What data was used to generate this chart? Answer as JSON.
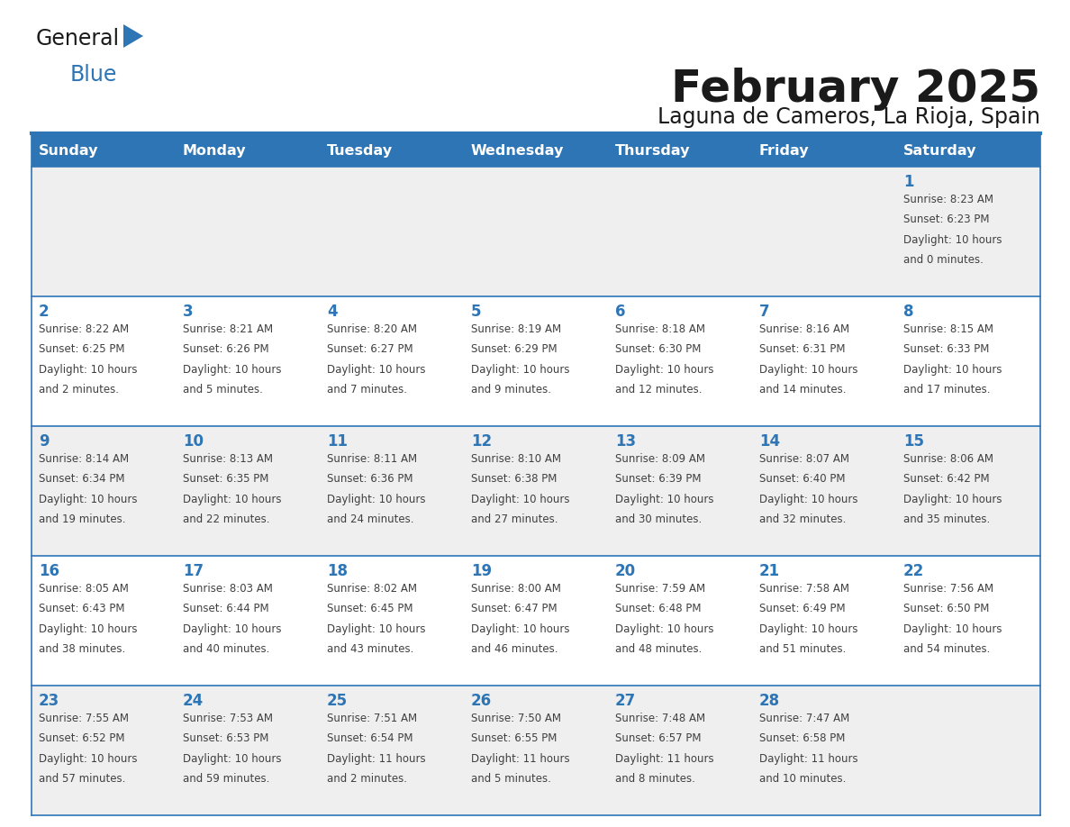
{
  "title": "February 2025",
  "subtitle": "Laguna de Cameros, La Rioja, Spain",
  "days_of_week": [
    "Sunday",
    "Monday",
    "Tuesday",
    "Wednesday",
    "Thursday",
    "Friday",
    "Saturday"
  ],
  "header_bg": "#2E75B6",
  "header_text_color": "#FFFFFF",
  "cell_bg_odd": "#EFEFEF",
  "cell_bg_even": "#FFFFFF",
  "border_color": "#2E75B6",
  "title_color": "#1a1a1a",
  "subtitle_color": "#1a1a1a",
  "day_number_color": "#2E75B6",
  "cell_text_color": "#404040",
  "calendar_data": [
    [
      null,
      null,
      null,
      null,
      null,
      null,
      {
        "day": 1,
        "sunrise": "8:23 AM",
        "sunset": "6:23 PM",
        "daylight": "10 hours and 0 minutes."
      }
    ],
    [
      {
        "day": 2,
        "sunrise": "8:22 AM",
        "sunset": "6:25 PM",
        "daylight": "10 hours and 2 minutes."
      },
      {
        "day": 3,
        "sunrise": "8:21 AM",
        "sunset": "6:26 PM",
        "daylight": "10 hours and 5 minutes."
      },
      {
        "day": 4,
        "sunrise": "8:20 AM",
        "sunset": "6:27 PM",
        "daylight": "10 hours and 7 minutes."
      },
      {
        "day": 5,
        "sunrise": "8:19 AM",
        "sunset": "6:29 PM",
        "daylight": "10 hours and 9 minutes."
      },
      {
        "day": 6,
        "sunrise": "8:18 AM",
        "sunset": "6:30 PM",
        "daylight": "10 hours and 12 minutes."
      },
      {
        "day": 7,
        "sunrise": "8:16 AM",
        "sunset": "6:31 PM",
        "daylight": "10 hours and 14 minutes."
      },
      {
        "day": 8,
        "sunrise": "8:15 AM",
        "sunset": "6:33 PM",
        "daylight": "10 hours and 17 minutes."
      }
    ],
    [
      {
        "day": 9,
        "sunrise": "8:14 AM",
        "sunset": "6:34 PM",
        "daylight": "10 hours and 19 minutes."
      },
      {
        "day": 10,
        "sunrise": "8:13 AM",
        "sunset": "6:35 PM",
        "daylight": "10 hours and 22 minutes."
      },
      {
        "day": 11,
        "sunrise": "8:11 AM",
        "sunset": "6:36 PM",
        "daylight": "10 hours and 24 minutes."
      },
      {
        "day": 12,
        "sunrise": "8:10 AM",
        "sunset": "6:38 PM",
        "daylight": "10 hours and 27 minutes."
      },
      {
        "day": 13,
        "sunrise": "8:09 AM",
        "sunset": "6:39 PM",
        "daylight": "10 hours and 30 minutes."
      },
      {
        "day": 14,
        "sunrise": "8:07 AM",
        "sunset": "6:40 PM",
        "daylight": "10 hours and 32 minutes."
      },
      {
        "day": 15,
        "sunrise": "8:06 AM",
        "sunset": "6:42 PM",
        "daylight": "10 hours and 35 minutes."
      }
    ],
    [
      {
        "day": 16,
        "sunrise": "8:05 AM",
        "sunset": "6:43 PM",
        "daylight": "10 hours and 38 minutes."
      },
      {
        "day": 17,
        "sunrise": "8:03 AM",
        "sunset": "6:44 PM",
        "daylight": "10 hours and 40 minutes."
      },
      {
        "day": 18,
        "sunrise": "8:02 AM",
        "sunset": "6:45 PM",
        "daylight": "10 hours and 43 minutes."
      },
      {
        "day": 19,
        "sunrise": "8:00 AM",
        "sunset": "6:47 PM",
        "daylight": "10 hours and 46 minutes."
      },
      {
        "day": 20,
        "sunrise": "7:59 AM",
        "sunset": "6:48 PM",
        "daylight": "10 hours and 48 minutes."
      },
      {
        "day": 21,
        "sunrise": "7:58 AM",
        "sunset": "6:49 PM",
        "daylight": "10 hours and 51 minutes."
      },
      {
        "day": 22,
        "sunrise": "7:56 AM",
        "sunset": "6:50 PM",
        "daylight": "10 hours and 54 minutes."
      }
    ],
    [
      {
        "day": 23,
        "sunrise": "7:55 AM",
        "sunset": "6:52 PM",
        "daylight": "10 hours and 57 minutes."
      },
      {
        "day": 24,
        "sunrise": "7:53 AM",
        "sunset": "6:53 PM",
        "daylight": "10 hours and 59 minutes."
      },
      {
        "day": 25,
        "sunrise": "7:51 AM",
        "sunset": "6:54 PM",
        "daylight": "11 hours and 2 minutes."
      },
      {
        "day": 26,
        "sunrise": "7:50 AM",
        "sunset": "6:55 PM",
        "daylight": "11 hours and 5 minutes."
      },
      {
        "day": 27,
        "sunrise": "7:48 AM",
        "sunset": "6:57 PM",
        "daylight": "11 hours and 8 minutes."
      },
      {
        "day": 28,
        "sunrise": "7:47 AM",
        "sunset": "6:58 PM",
        "daylight": "11 hours and 10 minutes."
      },
      null
    ]
  ],
  "logo_text_general": "General",
  "logo_text_blue": "Blue",
  "logo_color_general": "#1a1a1a",
  "logo_color_blue": "#2E75B6",
  "logo_triangle_color": "#2E75B6",
  "top_line_color": "#2E75B6"
}
